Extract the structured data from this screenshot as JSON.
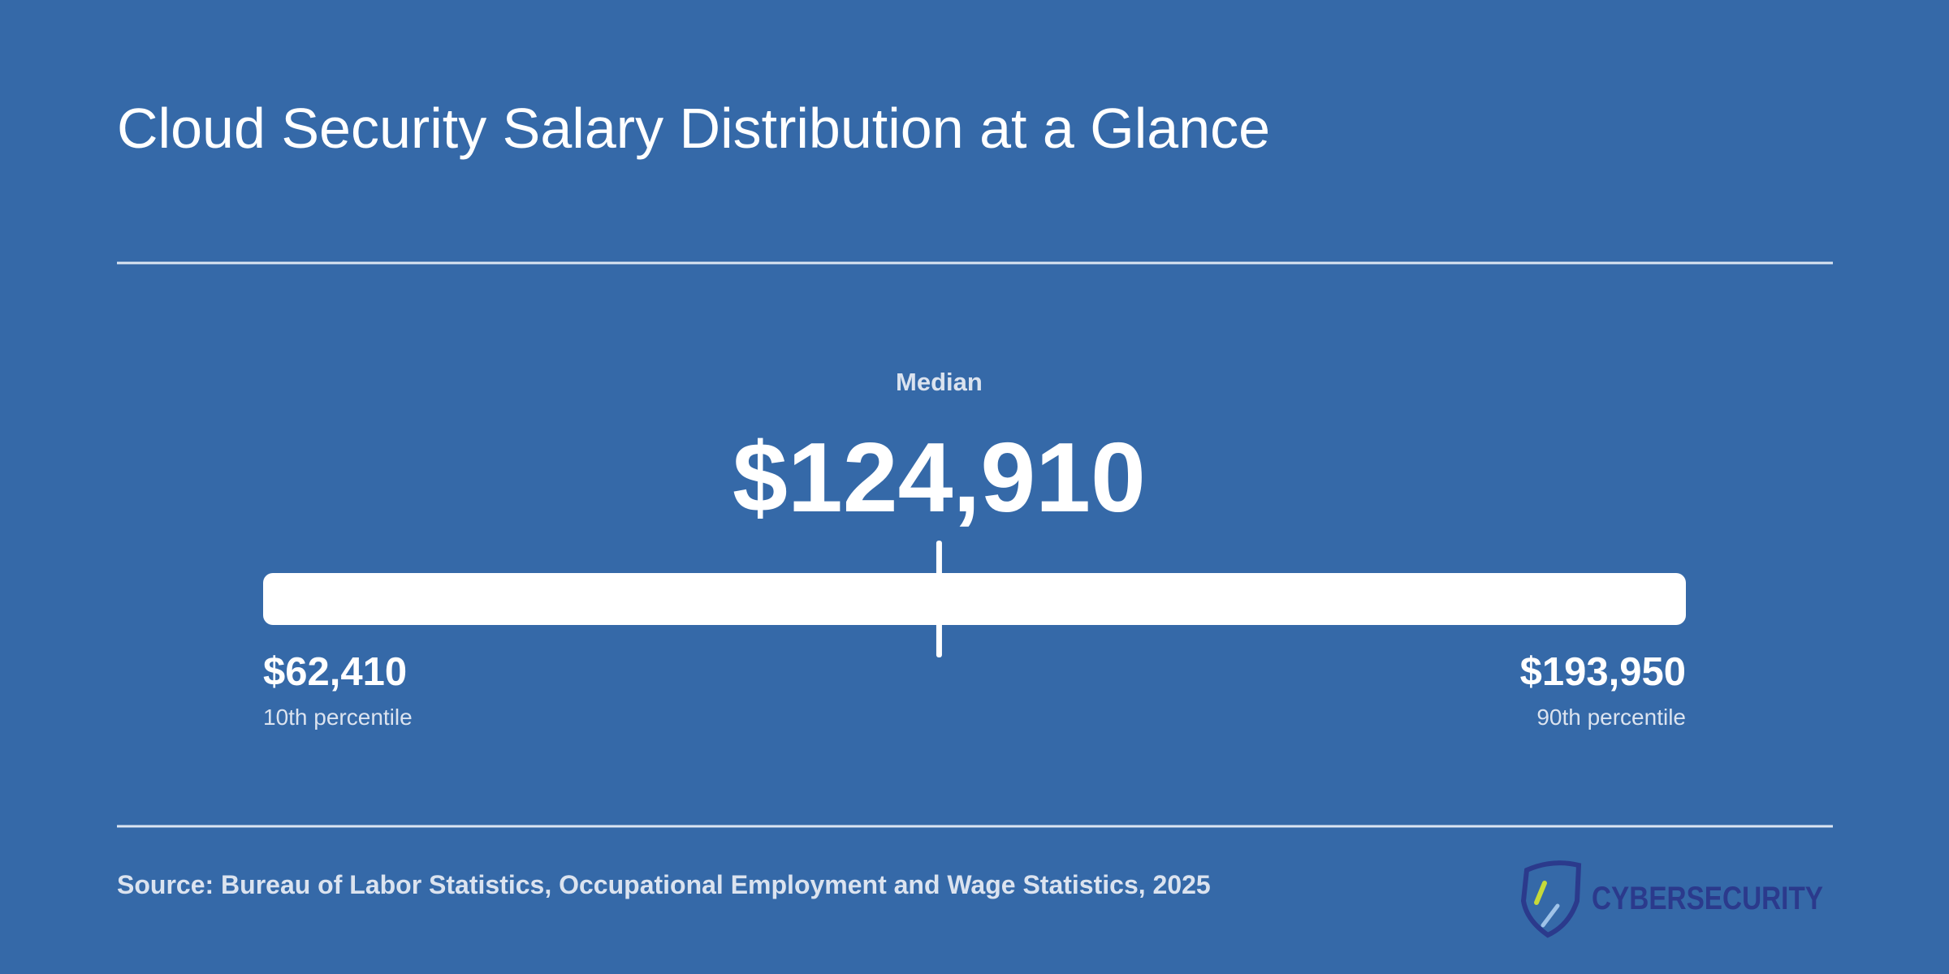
{
  "title": "Cloud Security Salary Distribution at a Glance",
  "median": {
    "label": "Median",
    "value": 124910,
    "value_label": "$124,910"
  },
  "low": {
    "value": 62410,
    "value_label": "$62,410",
    "label": "10th percentile"
  },
  "high": {
    "value": 193950,
    "value_label": "$193,950",
    "label": "90th percentile"
  },
  "source": "Source: Bureau of Labor Statistics, Occupational Employment and Wage Statistics, 2025",
  "logo": "CYBERSECURITY"
}
